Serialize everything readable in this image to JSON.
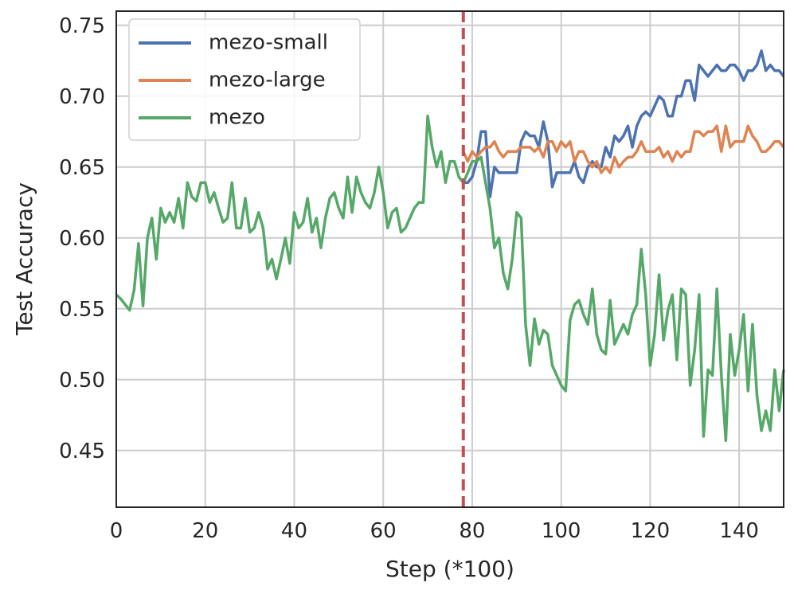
{
  "chart_data": {
    "type": "line",
    "xlabel": "Step (*100)",
    "ylabel": "Test Accuracy",
    "xlim": [
      0,
      150
    ],
    "ylim": [
      0.41,
      0.76
    ],
    "xticks": [
      0,
      20,
      40,
      60,
      80,
      100,
      120,
      140
    ],
    "yticks": [
      0.45,
      {
        "value": 0.5,
        "label": "0.50"
      },
      0.55,
      {
        "value": 0.6,
        "label": "0.60"
      },
      0.65,
      {
        "value": 0.7,
        "label": "0.70"
      },
      0.75
    ],
    "grid": true,
    "legend": "upper left",
    "vline": {
      "x": 78,
      "color": "#c44e52"
    },
    "x": [
      0,
      1,
      2,
      3,
      4,
      5,
      6,
      7,
      8,
      9,
      10,
      11,
      12,
      13,
      14,
      15,
      16,
      17,
      18,
      19,
      20,
      21,
      22,
      23,
      24,
      25,
      26,
      27,
      28,
      29,
      30,
      31,
      32,
      33,
      34,
      35,
      36,
      37,
      38,
      39,
      40,
      41,
      42,
      43,
      44,
      45,
      46,
      47,
      48,
      49,
      50,
      51,
      52,
      53,
      54,
      55,
      56,
      57,
      58,
      59,
      60,
      61,
      62,
      63,
      64,
      65,
      66,
      67,
      68,
      69,
      70,
      71,
      72,
      73,
      74,
      75,
      76,
      77,
      78,
      79,
      80,
      81,
      82,
      83,
      84,
      85,
      86,
      87,
      88,
      89,
      90,
      91,
      92,
      93,
      94,
      95,
      96,
      97,
      98,
      99,
      100,
      101,
      102,
      103,
      104,
      105,
      106,
      107,
      108,
      109,
      110,
      111,
      112,
      113,
      114,
      115,
      116,
      117,
      118,
      119,
      120,
      121,
      122,
      123,
      124,
      125,
      126,
      127,
      128,
      129,
      130,
      131,
      132,
      133,
      134,
      135,
      136,
      137,
      138,
      139,
      140,
      141,
      142,
      143,
      144,
      145,
      146,
      147,
      148,
      149,
      150
    ],
    "series": [
      {
        "name": "mezo-small",
        "color": "#4c72b0",
        "values": [
          null,
          null,
          null,
          null,
          null,
          null,
          null,
          null,
          null,
          null,
          null,
          null,
          null,
          null,
          null,
          null,
          null,
          null,
          null,
          null,
          null,
          null,
          null,
          null,
          null,
          null,
          null,
          null,
          null,
          null,
          null,
          null,
          null,
          null,
          null,
          null,
          null,
          null,
          null,
          null,
          null,
          null,
          null,
          null,
          null,
          null,
          null,
          null,
          null,
          null,
          null,
          null,
          null,
          null,
          null,
          null,
          null,
          null,
          null,
          null,
          null,
          null,
          null,
          null,
          null,
          null,
          null,
          null,
          null,
          null,
          null,
          null,
          null,
          null,
          null,
          null,
          null,
          null,
          0.639,
          0.639,
          0.643,
          0.654,
          0.675,
          0.675,
          0.629,
          0.65,
          0.646,
          0.646,
          0.646,
          0.646,
          0.646,
          0.668,
          0.675,
          0.672,
          0.672,
          0.664,
          0.682,
          0.668,
          0.636,
          0.646,
          0.646,
          0.646,
          0.646,
          0.654,
          0.643,
          0.639,
          0.65,
          0.654,
          0.65,
          0.65,
          0.664,
          0.657,
          0.672,
          0.668,
          0.672,
          0.679,
          0.664,
          0.679,
          0.686,
          0.689,
          0.686,
          0.693,
          0.7,
          0.697,
          0.686,
          0.686,
          0.7,
          0.7,
          0.711,
          0.711,
          0.697,
          0.722,
          0.718,
          0.714,
          0.718,
          0.722,
          0.718,
          0.718,
          0.722,
          0.722,
          0.718,
          0.711,
          0.718,
          0.718,
          0.722,
          0.732,
          0.718,
          0.722,
          0.718,
          0.718,
          0.714
        ]
      },
      {
        "name": "mezo-large",
        "color": "#dd8452",
        "values": [
          null,
          null,
          null,
          null,
          null,
          null,
          null,
          null,
          null,
          null,
          null,
          null,
          null,
          null,
          null,
          null,
          null,
          null,
          null,
          null,
          null,
          null,
          null,
          null,
          null,
          null,
          null,
          null,
          null,
          null,
          null,
          null,
          null,
          null,
          null,
          null,
          null,
          null,
          null,
          null,
          null,
          null,
          null,
          null,
          null,
          null,
          null,
          null,
          null,
          null,
          null,
          null,
          null,
          null,
          null,
          null,
          null,
          null,
          null,
          null,
          null,
          null,
          null,
          null,
          null,
          null,
          null,
          null,
          null,
          null,
          null,
          null,
          null,
          null,
          null,
          null,
          null,
          null,
          0.661,
          0.654,
          0.661,
          0.657,
          0.661,
          0.664,
          0.664,
          0.668,
          0.661,
          0.657,
          0.661,
          0.661,
          0.661,
          0.664,
          0.664,
          0.664,
          0.661,
          0.664,
          0.657,
          0.668,
          0.668,
          0.661,
          0.668,
          0.664,
          0.668,
          0.654,
          0.661,
          0.661,
          0.654,
          0.65,
          0.654,
          0.646,
          0.65,
          0.646,
          0.657,
          0.65,
          0.654,
          0.657,
          0.657,
          0.661,
          0.668,
          0.661,
          0.661,
          0.661,
          0.664,
          0.657,
          0.661,
          0.654,
          0.661,
          0.657,
          0.661,
          0.661,
          0.675,
          0.675,
          0.672,
          0.675,
          0.675,
          0.679,
          0.661,
          0.679,
          0.664,
          0.668,
          0.668,
          0.668,
          0.679,
          0.672,
          0.668,
          0.661,
          0.661,
          0.664,
          0.668,
          0.668,
          0.664
        ]
      },
      {
        "name": "mezo",
        "color": "#55a868",
        "values": [
          0.56,
          0.557,
          0.553,
          0.549,
          0.563,
          0.596,
          0.552,
          0.6,
          0.614,
          0.585,
          0.621,
          0.611,
          0.618,
          0.611,
          0.628,
          0.607,
          0.639,
          0.629,
          0.626,
          0.639,
          0.639,
          0.625,
          0.632,
          0.621,
          0.611,
          0.614,
          0.639,
          0.607,
          0.607,
          0.628,
          0.604,
          0.607,
          0.618,
          0.607,
          0.578,
          0.585,
          0.571,
          0.585,
          0.6,
          0.582,
          0.618,
          0.607,
          0.611,
          0.628,
          0.604,
          0.614,
          0.593,
          0.614,
          0.628,
          0.632,
          0.621,
          0.614,
          0.643,
          0.618,
          0.643,
          0.632,
          0.625,
          0.621,
          0.632,
          0.65,
          0.632,
          0.607,
          0.618,
          0.621,
          0.604,
          0.607,
          0.614,
          0.621,
          0.625,
          0.625,
          0.686,
          0.664,
          0.65,
          0.661,
          0.639,
          0.654,
          0.654,
          0.643,
          0.639,
          0.646,
          0.654,
          0.654,
          0.657,
          0.639,
          0.621,
          0.593,
          0.6,
          0.575,
          0.564,
          0.585,
          0.618,
          0.614,
          0.539,
          0.51,
          0.543,
          0.525,
          0.535,
          0.532,
          0.51,
          0.503,
          0.496,
          0.492,
          0.542,
          0.553,
          0.556,
          0.546,
          0.539,
          0.564,
          0.532,
          0.521,
          0.518,
          0.556,
          0.525,
          0.532,
          0.539,
          0.532,
          0.546,
          0.553,
          0.592,
          0.56,
          0.51,
          0.532,
          0.574,
          0.528,
          0.549,
          0.56,
          0.514,
          0.564,
          0.56,
          0.496,
          0.521,
          0.56,
          0.46,
          0.507,
          0.503,
          0.564,
          0.503,
          0.457,
          0.532,
          0.503,
          0.521,
          0.546,
          0.492,
          0.539,
          0.489,
          0.464,
          0.478,
          0.464,
          0.507,
          0.478,
          0.507
        ]
      }
    ]
  }
}
